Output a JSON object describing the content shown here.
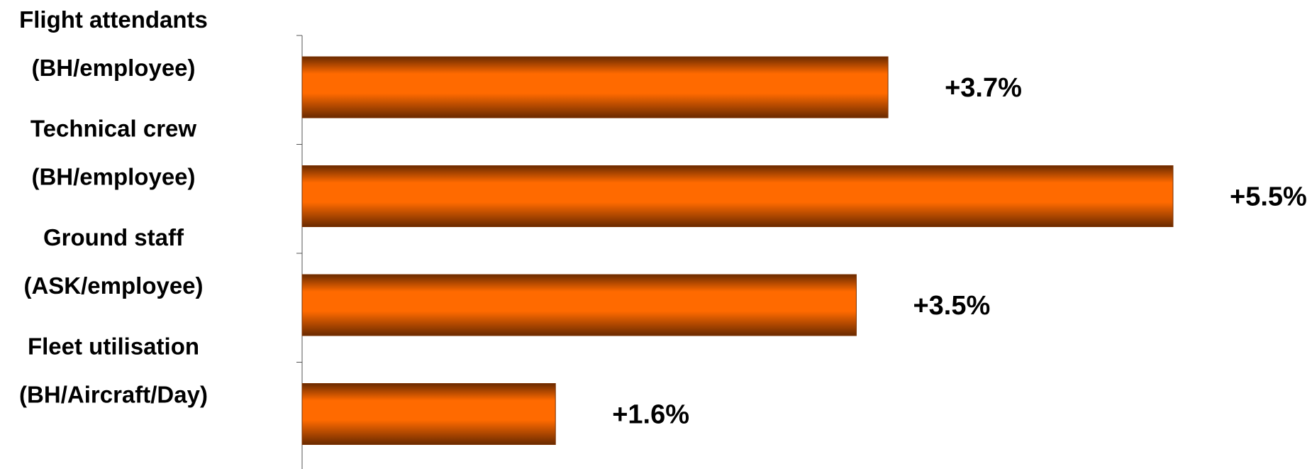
{
  "chart_data": {
    "type": "bar",
    "orientation": "horizontal",
    "categories": [
      [
        "Flight attendants",
        "(BH/employee)"
      ],
      [
        "Technical crew",
        "(BH/employee)"
      ],
      [
        "Ground staff",
        "(ASK/employee)"
      ],
      [
        "Fleet utilisation",
        "(BH/Aircraft/Day)"
      ]
    ],
    "values": [
      3.7,
      5.5,
      3.5,
      1.6
    ],
    "data_labels": [
      "+3.7%",
      "+5.5%",
      "+3.5%",
      "+1.6%"
    ],
    "title": "",
    "xlabel": "",
    "ylabel": "",
    "xlim": [
      0,
      5.5
    ],
    "grid": false,
    "legend": "none",
    "bar_color": "#ff6a00",
    "bar_edge_color": "#7a3000"
  }
}
